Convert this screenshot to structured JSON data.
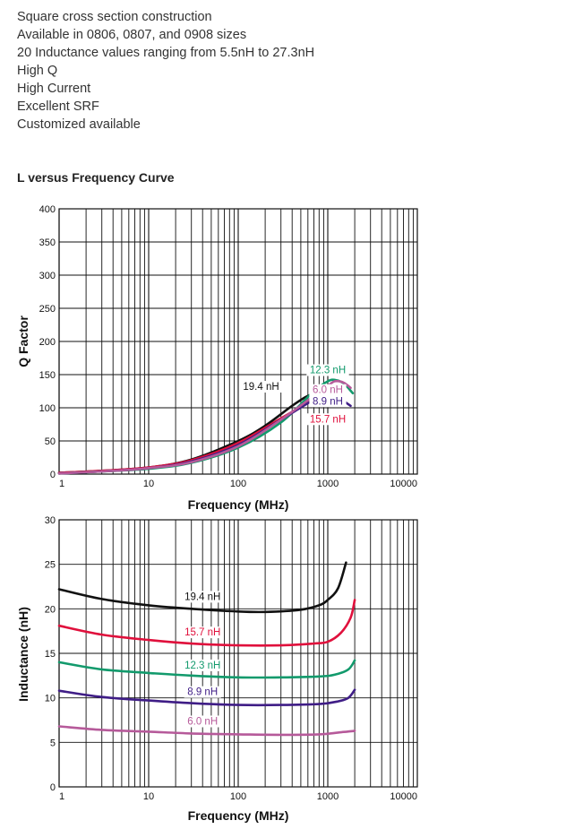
{
  "features": [
    "Square cross section construction",
    "Available in 0806, 0807, and 0908 sizes",
    "20 Inductance values ranging from 5.5nH to 27.3nH",
    "High Q",
    "High Current",
    "Excellent SRF",
    "Customized available"
  ],
  "section_title": "L versus Frequency Curve",
  "chart_data": [
    {
      "type": "line",
      "title": "",
      "xlabel": "Frequency (MHz)",
      "ylabel": "Q Factor",
      "xscale": "log",
      "xlim": [
        1,
        10000
      ],
      "ylim": [
        0,
        400
      ],
      "xticks": [
        1,
        10,
        100,
        1000,
        10000
      ],
      "xtick_labels": [
        "1",
        "10",
        "100",
        "1000",
        "10000"
      ],
      "yticks": [
        0,
        50,
        100,
        150,
        200,
        250,
        300,
        350,
        400
      ],
      "ytick_labels": [
        "0",
        "50",
        "100",
        "150",
        "200",
        "250",
        "300",
        "350",
        "400"
      ],
      "grid": true,
      "series": [
        {
          "name": "19.4 nH",
          "color": "#111111",
          "label_pos": [
            180,
            127
          ],
          "points": [
            [
              1,
              2
            ],
            [
              3,
              5
            ],
            [
              10,
              10
            ],
            [
              30,
              22
            ],
            [
              100,
              50
            ],
            [
              200,
              73
            ],
            [
              400,
              103
            ],
            [
              600,
              118
            ],
            [
              750,
              120
            ],
            [
              900,
              112
            ],
            [
              1000,
              105
            ]
          ]
        },
        {
          "name": "15.7 nH",
          "color": "#e0103c",
          "label_pos": [
            1000,
            78
          ],
          "points": [
            [
              1,
              2
            ],
            [
              3,
              5
            ],
            [
              10,
              10
            ],
            [
              30,
              21
            ],
            [
              100,
              47
            ],
            [
              300,
              84
            ],
            [
              700,
              112
            ],
            [
              1000,
              118
            ],
            [
              1200,
              112
            ],
            [
              1400,
              103
            ]
          ]
        },
        {
          "name": "12.3 nH",
          "color": "#129a6c",
          "label_pos": [
            1000,
            152
          ],
          "points": [
            [
              1,
              1
            ],
            [
              3,
              4
            ],
            [
              10,
              8
            ],
            [
              30,
              17
            ],
            [
              100,
              40
            ],
            [
              300,
              78
            ],
            [
              700,
              125
            ],
            [
              1000,
              140
            ],
            [
              1200,
              142
            ],
            [
              1500,
              137
            ],
            [
              1900,
              122
            ]
          ]
        },
        {
          "name": "8.9 nH",
          "color": "#3f1d86",
          "label_pos": [
            1000,
            105
          ],
          "points": [
            [
              1,
              1
            ],
            [
              3,
              4
            ],
            [
              10,
              9
            ],
            [
              30,
              19
            ],
            [
              100,
              44
            ],
            [
              300,
              82
            ],
            [
              700,
              112
            ],
            [
              1000,
              118
            ],
            [
              1300,
              115
            ],
            [
              1800,
              103
            ]
          ]
        },
        {
          "name": "6.0 nH",
          "color": "#b65a9a",
          "label_pos": [
            1000,
            122
          ],
          "points": [
            [
              1,
              1
            ],
            [
              3,
              4
            ],
            [
              10,
              9
            ],
            [
              30,
              18
            ],
            [
              100,
              42
            ],
            [
              300,
              82
            ],
            [
              700,
              118
            ],
            [
              1000,
              133
            ],
            [
              1200,
              140
            ],
            [
              1500,
              138
            ],
            [
              1800,
              130
            ]
          ]
        }
      ]
    },
    {
      "type": "line",
      "title": "",
      "xlabel": "Frequency (MHz)",
      "ylabel": "Inductance (nH)",
      "xscale": "log",
      "xlim": [
        1,
        10000
      ],
      "ylim": [
        0,
        30
      ],
      "xticks": [
        1,
        10,
        100,
        1000,
        10000
      ],
      "xtick_labels": [
        "1",
        "10",
        "100",
        "1000",
        "10000"
      ],
      "yticks": [
        0,
        5,
        10,
        15,
        20,
        25,
        30
      ],
      "ytick_labels": [
        "0",
        "5",
        "10",
        "15",
        "20",
        "25",
        "30"
      ],
      "grid": true,
      "series": [
        {
          "name": "19.4 nH",
          "color": "#111111",
          "label_pos": [
            40,
            21
          ],
          "points": [
            [
              1,
              22.2
            ],
            [
              3,
              21.1
            ],
            [
              10,
              20.4
            ],
            [
              30,
              20.0
            ],
            [
              100,
              19.7
            ],
            [
              200,
              19.65
            ],
            [
              500,
              19.9
            ],
            [
              800,
              20.4
            ],
            [
              1000,
              21.0
            ],
            [
              1300,
              22.3
            ],
            [
              1600,
              25.2
            ]
          ]
        },
        {
          "name": "15.7 nH",
          "color": "#e0103c",
          "label_pos": [
            40,
            17
          ],
          "points": [
            [
              1,
              18.1
            ],
            [
              3,
              17.1
            ],
            [
              10,
              16.5
            ],
            [
              30,
              16.1
            ],
            [
              100,
              15.9
            ],
            [
              300,
              15.9
            ],
            [
              700,
              16.1
            ],
            [
              1000,
              16.3
            ],
            [
              1400,
              17.3
            ],
            [
              1800,
              19.0
            ],
            [
              2000,
              21.0
            ]
          ]
        },
        {
          "name": "12.3 nH",
          "color": "#129a6c",
          "label_pos": [
            40,
            13.3
          ],
          "points": [
            [
              1,
              14.0
            ],
            [
              3,
              13.2
            ],
            [
              10,
              12.8
            ],
            [
              30,
              12.5
            ],
            [
              100,
              12.3
            ],
            [
              300,
              12.3
            ],
            [
              800,
              12.4
            ],
            [
              1200,
              12.6
            ],
            [
              1700,
              13.2
            ],
            [
              2000,
              14.2
            ]
          ]
        },
        {
          "name": "8.9 nH",
          "color": "#3f1d86",
          "label_pos": [
            40,
            10.3
          ],
          "points": [
            [
              1,
              10.8
            ],
            [
              3,
              10.1
            ],
            [
              10,
              9.7
            ],
            [
              30,
              9.4
            ],
            [
              100,
              9.2
            ],
            [
              300,
              9.2
            ],
            [
              800,
              9.3
            ],
            [
              1300,
              9.6
            ],
            [
              1700,
              10.0
            ],
            [
              2000,
              10.9
            ]
          ]
        },
        {
          "name": "6.0 nH",
          "color": "#b65a9a",
          "label_pos": [
            40,
            7.0
          ],
          "points": [
            [
              1,
              6.8
            ],
            [
              3,
              6.4
            ],
            [
              10,
              6.2
            ],
            [
              30,
              6.0
            ],
            [
              100,
              5.9
            ],
            [
              300,
              5.85
            ],
            [
              800,
              5.9
            ],
            [
              1300,
              6.1
            ],
            [
              2000,
              6.3
            ]
          ]
        }
      ]
    }
  ]
}
